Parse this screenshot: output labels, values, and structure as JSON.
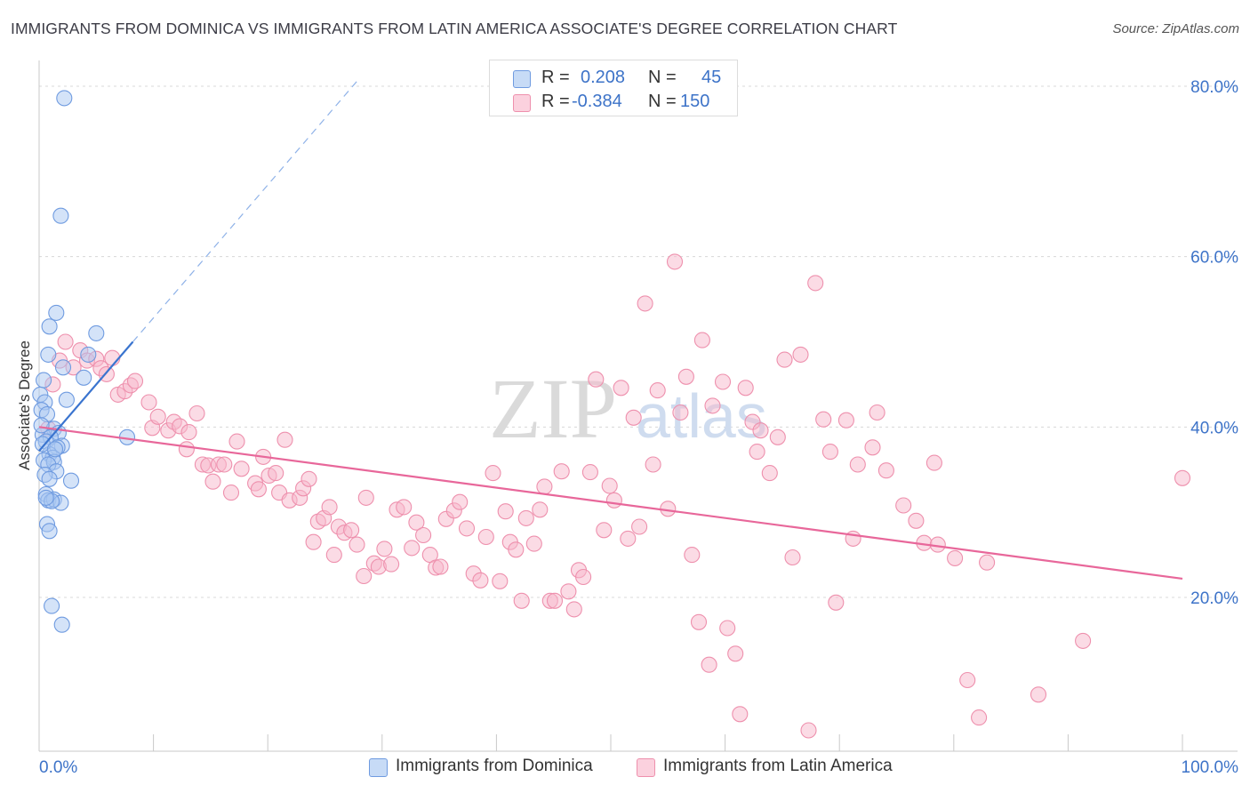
{
  "title": "IMMIGRANTS FROM DOMINICA VS IMMIGRANTS FROM LATIN AMERICA ASSOCIATE'S DEGREE CORRELATION CHART",
  "source": "Source: ZipAtlas.com",
  "watermark": {
    "zip": "ZIP",
    "atlas": "atlas"
  },
  "legend": {
    "series": [
      {
        "name": "Immigrants from Dominica",
        "r_label": "R =",
        "r_value": "0.208",
        "n_label": "N =",
        "n_value": "45",
        "fill": "#a9c8f1",
        "stroke": "#6f9be0",
        "line": "#3a74cf"
      },
      {
        "name": "Immigrants from Latin America",
        "r_label": "R =",
        "r_value": "-0.384",
        "n_label": "N =",
        "n_value": "150",
        "fill": "#f7b8cb",
        "stroke": "#ee90ad",
        "line": "#e8679a"
      }
    ]
  },
  "chart_data": {
    "type": "scatter",
    "title": "IMMIGRANTS FROM DOMINICA VS IMMIGRANTS FROM LATIN AMERICA ASSOCIATE'S DEGREE CORRELATION CHART",
    "xlabel": "",
    "ylabel": "Associate's Degree",
    "xlim": [
      0,
      100
    ],
    "ylim": [
      0,
      82
    ],
    "x_tick_labels": [
      "0.0%",
      "100.0%"
    ],
    "y_ticks": [
      20,
      40,
      60,
      80
    ],
    "y_tick_labels": [
      "20.0%",
      "40.0%",
      "60.0%",
      "80.0%"
    ],
    "grid": true,
    "series": [
      {
        "name": "Immigrants from Dominica",
        "points": [
          [
            2.2,
            78.6
          ],
          [
            1.9,
            64.8
          ],
          [
            1.5,
            53.4
          ],
          [
            0.9,
            51.8
          ],
          [
            5.0,
            51.0
          ],
          [
            0.8,
            48.5
          ],
          [
            4.3,
            48.5
          ],
          [
            2.1,
            47.0
          ],
          [
            3.9,
            45.8
          ],
          [
            0.4,
            45.5
          ],
          [
            0.1,
            43.8
          ],
          [
            2.4,
            43.2
          ],
          [
            0.5,
            42.9
          ],
          [
            0.2,
            42.0
          ],
          [
            0.7,
            41.5
          ],
          [
            1.3,
            39.8
          ],
          [
            1.7,
            39.3
          ],
          [
            0.3,
            39.1
          ],
          [
            1.0,
            38.8
          ],
          [
            7.7,
            38.8
          ],
          [
            0.6,
            38.3
          ],
          [
            2.0,
            37.8
          ],
          [
            1.6,
            37.6
          ],
          [
            0.9,
            36.8
          ],
          [
            1.2,
            36.4
          ],
          [
            0.4,
            36.1
          ],
          [
            1.3,
            35.9
          ],
          [
            0.8,
            35.6
          ],
          [
            1.5,
            34.8
          ],
          [
            0.5,
            34.4
          ],
          [
            0.9,
            33.9
          ],
          [
            2.8,
            33.7
          ],
          [
            0.6,
            32.1
          ],
          [
            0.8,
            31.4
          ],
          [
            1.3,
            31.5
          ],
          [
            1.9,
            31.1
          ],
          [
            0.7,
            28.6
          ],
          [
            0.9,
            27.8
          ],
          [
            1.1,
            19.0
          ],
          [
            2.0,
            16.8
          ],
          [
            0.3,
            38.0
          ],
          [
            0.2,
            40.2
          ],
          [
            1.1,
            31.3
          ],
          [
            0.6,
            31.7
          ],
          [
            1.4,
            37.4
          ]
        ]
      },
      {
        "name": "Immigrants from Latin America",
        "points": [
          [
            0.8,
            39.8
          ],
          [
            1.2,
            45.0
          ],
          [
            1.8,
            47.8
          ],
          [
            2.3,
            50.0
          ],
          [
            3.0,
            47.0
          ],
          [
            3.6,
            49.0
          ],
          [
            4.2,
            47.8
          ],
          [
            5.0,
            48.0
          ],
          [
            5.4,
            46.9
          ],
          [
            5.9,
            46.2
          ],
          [
            6.4,
            48.1
          ],
          [
            6.9,
            43.8
          ],
          [
            7.5,
            44.2
          ],
          [
            8.0,
            44.9
          ],
          [
            8.4,
            45.4
          ],
          [
            9.6,
            42.9
          ],
          [
            9.9,
            39.9
          ],
          [
            10.4,
            41.2
          ],
          [
            11.3,
            39.6
          ],
          [
            11.8,
            40.6
          ],
          [
            12.3,
            40.1
          ],
          [
            12.9,
            37.4
          ],
          [
            13.1,
            39.4
          ],
          [
            13.8,
            41.6
          ],
          [
            14.3,
            35.6
          ],
          [
            14.8,
            35.5
          ],
          [
            15.2,
            33.6
          ],
          [
            15.7,
            35.6
          ],
          [
            16.2,
            35.6
          ],
          [
            16.8,
            32.3
          ],
          [
            17.3,
            38.3
          ],
          [
            17.7,
            35.1
          ],
          [
            18.9,
            33.4
          ],
          [
            19.2,
            32.7
          ],
          [
            19.6,
            36.5
          ],
          [
            20.1,
            34.3
          ],
          [
            20.7,
            34.6
          ],
          [
            21.0,
            32.3
          ],
          [
            21.5,
            38.5
          ],
          [
            21.9,
            31.4
          ],
          [
            22.8,
            31.7
          ],
          [
            23.1,
            32.8
          ],
          [
            23.6,
            33.9
          ],
          [
            24.0,
            26.5
          ],
          [
            24.4,
            28.9
          ],
          [
            24.9,
            29.3
          ],
          [
            25.4,
            30.6
          ],
          [
            25.8,
            25.0
          ],
          [
            26.2,
            28.3
          ],
          [
            26.7,
            27.6
          ],
          [
            27.3,
            27.9
          ],
          [
            27.8,
            26.2
          ],
          [
            28.4,
            22.5
          ],
          [
            28.6,
            31.7
          ],
          [
            29.3,
            24.0
          ],
          [
            29.7,
            23.6
          ],
          [
            30.2,
            25.7
          ],
          [
            30.8,
            23.9
          ],
          [
            31.3,
            30.3
          ],
          [
            31.9,
            30.6
          ],
          [
            32.6,
            25.8
          ],
          [
            33.0,
            28.8
          ],
          [
            33.6,
            27.3
          ],
          [
            34.2,
            25.0
          ],
          [
            34.7,
            23.5
          ],
          [
            35.1,
            23.6
          ],
          [
            35.6,
            29.2
          ],
          [
            36.3,
            30.2
          ],
          [
            36.8,
            31.2
          ],
          [
            37.4,
            28.1
          ],
          [
            38.0,
            22.8
          ],
          [
            38.6,
            22.0
          ],
          [
            39.1,
            27.1
          ],
          [
            39.7,
            34.6
          ],
          [
            40.3,
            21.9
          ],
          [
            40.8,
            30.1
          ],
          [
            41.2,
            26.5
          ],
          [
            41.7,
            25.6
          ],
          [
            42.2,
            19.6
          ],
          [
            42.6,
            29.3
          ],
          [
            43.3,
            26.3
          ],
          [
            43.8,
            30.3
          ],
          [
            44.2,
            33.0
          ],
          [
            44.7,
            19.6
          ],
          [
            45.1,
            19.6
          ],
          [
            45.7,
            34.8
          ],
          [
            46.3,
            20.7
          ],
          [
            46.8,
            18.6
          ],
          [
            47.2,
            23.2
          ],
          [
            47.6,
            22.4
          ],
          [
            48.2,
            34.7
          ],
          [
            48.7,
            45.6
          ],
          [
            49.4,
            27.9
          ],
          [
            49.9,
            33.1
          ],
          [
            50.3,
            31.4
          ],
          [
            50.9,
            44.6
          ],
          [
            51.5,
            26.9
          ],
          [
            52.0,
            41.1
          ],
          [
            52.5,
            28.3
          ],
          [
            53.0,
            54.5
          ],
          [
            53.7,
            35.6
          ],
          [
            54.1,
            44.3
          ],
          [
            55.0,
            30.4
          ],
          [
            55.6,
            59.4
          ],
          [
            56.1,
            41.7
          ],
          [
            56.6,
            45.9
          ],
          [
            57.1,
            25.0
          ],
          [
            57.7,
            17.1
          ],
          [
            58.0,
            50.2
          ],
          [
            58.6,
            12.1
          ],
          [
            58.9,
            42.5
          ],
          [
            59.8,
            45.3
          ],
          [
            60.2,
            16.4
          ],
          [
            60.9,
            13.4
          ],
          [
            61.3,
            6.3
          ],
          [
            61.8,
            44.6
          ],
          [
            62.4,
            40.6
          ],
          [
            62.8,
            37.1
          ],
          [
            63.1,
            39.6
          ],
          [
            63.9,
            34.6
          ],
          [
            64.6,
            38.8
          ],
          [
            65.2,
            47.9
          ],
          [
            65.9,
            24.7
          ],
          [
            66.6,
            48.5
          ],
          [
            67.3,
            4.4
          ],
          [
            67.9,
            56.9
          ],
          [
            68.6,
            40.9
          ],
          [
            69.2,
            37.1
          ],
          [
            69.7,
            19.4
          ],
          [
            70.6,
            40.8
          ],
          [
            71.2,
            26.9
          ],
          [
            71.6,
            35.6
          ],
          [
            72.9,
            37.6
          ],
          [
            73.3,
            41.7
          ],
          [
            74.1,
            34.9
          ],
          [
            75.6,
            30.8
          ],
          [
            76.7,
            29.0
          ],
          [
            77.4,
            26.4
          ],
          [
            78.6,
            26.2
          ],
          [
            78.3,
            35.8
          ],
          [
            80.1,
            24.6
          ],
          [
            81.2,
            10.3
          ],
          [
            82.2,
            5.9
          ],
          [
            82.9,
            24.1
          ],
          [
            87.4,
            8.6
          ],
          [
            91.3,
            14.9
          ],
          [
            100.0,
            34.0
          ]
        ]
      }
    ],
    "trendlines": [
      {
        "series": "Immigrants from Dominica",
        "solid_x": [
          0,
          8.2
        ],
        "solid_y": [
          37.2,
          50.0
        ],
        "dashed_x": [
          8.2,
          28.0
        ],
        "dashed_y": [
          50.0,
          80.9
        ]
      },
      {
        "series": "Immigrants from Latin America",
        "x": [
          0,
          100
        ],
        "y": [
          40.0,
          22.2
        ]
      }
    ]
  }
}
